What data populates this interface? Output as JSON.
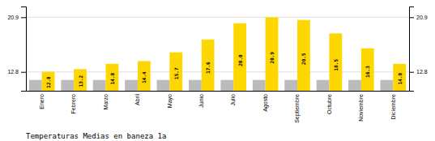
{
  "chart_data": {
    "type": "bar",
    "title": "Temperaturas Medias en baneza 1a",
    "categories": [
      "Enero",
      "Febrero",
      "Marzo",
      "Abril",
      "Mayo",
      "Junio",
      "Julio",
      "Agosto",
      "Septiembre",
      "Octubre",
      "Noviembre",
      "Diciembre"
    ],
    "series": [
      {
        "color": "#BBBBBB",
        "values": [
          11.6,
          11.6,
          11.6,
          11.6,
          11.6,
          11.6,
          11.6,
          11.6,
          11.6,
          11.6,
          11.6,
          11.6
        ]
      },
      {
        "color": "#FFD700",
        "values": [
          12.8,
          13.2,
          14.0,
          14.4,
          15.7,
          17.6,
          20.0,
          20.9,
          20.5,
          18.5,
          16.3,
          14.0
        ],
        "value_labels": [
          "12.8",
          "13.2",
          "14.0",
          "14.4",
          "15.7",
          "17.6",
          "20.0",
          "20.9",
          "20.5",
          "18.5",
          "16.3",
          "14.0"
        ],
        "data_labels": true
      }
    ],
    "ylim": [
      10.0,
      22.5
    ],
    "yticks": [
      12.8,
      20.9
    ],
    "grid": true
  }
}
